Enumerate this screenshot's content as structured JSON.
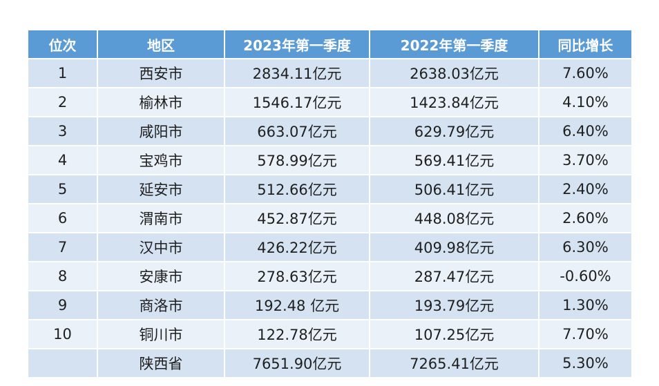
{
  "table": {
    "headers": [
      "位次",
      "地区",
      "2023年第一季度",
      "2022年第一季度",
      "同比增长"
    ],
    "rows": [
      {
        "rank": "1",
        "region": "西安市",
        "q1_2023": "2834.11亿元",
        "q1_2022": "2638.03亿元",
        "growth": "7.60%"
      },
      {
        "rank": "2",
        "region": "榆林市",
        "q1_2023": "1546.17亿元",
        "q1_2022": "1423.84亿元",
        "growth": "4.10%"
      },
      {
        "rank": "3",
        "region": "咸阳市",
        "q1_2023": "663.07亿元",
        "q1_2022": "629.79亿元",
        "growth": "6.40%"
      },
      {
        "rank": "4",
        "region": "宝鸡市",
        "q1_2023": "578.99亿元",
        "q1_2022": "569.41亿元",
        "growth": "3.70%"
      },
      {
        "rank": "5",
        "region": "延安市",
        "q1_2023": "512.66亿元",
        "q1_2022": "506.41亿元",
        "growth": "2.40%"
      },
      {
        "rank": "6",
        "region": "渭南市",
        "q1_2023": "452.87亿元",
        "q1_2022": "448.08亿元",
        "growth": "2.60%"
      },
      {
        "rank": "7",
        "region": "汉中市",
        "q1_2023": "426.22亿元",
        "q1_2022": "409.98亿元",
        "growth": "6.30%"
      },
      {
        "rank": "8",
        "region": "安康市",
        "q1_2023": "278.63亿元",
        "q1_2022": "287.47亿元",
        "growth": "-0.60%"
      },
      {
        "rank": "9",
        "region": "商洛市",
        "q1_2023": "192.48 亿元",
        "q1_2022": "193.79亿元",
        "growth": "1.30%"
      },
      {
        "rank": "10",
        "region": "铜川市",
        "q1_2023": "122.78亿元",
        "q1_2022": "107.25亿元",
        "growth": "7.70%"
      },
      {
        "rank": "",
        "region": "陕西省",
        "q1_2023": "7651.90亿元",
        "q1_2022": "7265.41亿元",
        "growth": "5.30%"
      }
    ]
  },
  "colors": {
    "header_bg": "#5b9bd5",
    "header_text": "#ffffff",
    "row_band_dark": "#d4e2f2",
    "row_band_light": "#eaf1f8"
  }
}
